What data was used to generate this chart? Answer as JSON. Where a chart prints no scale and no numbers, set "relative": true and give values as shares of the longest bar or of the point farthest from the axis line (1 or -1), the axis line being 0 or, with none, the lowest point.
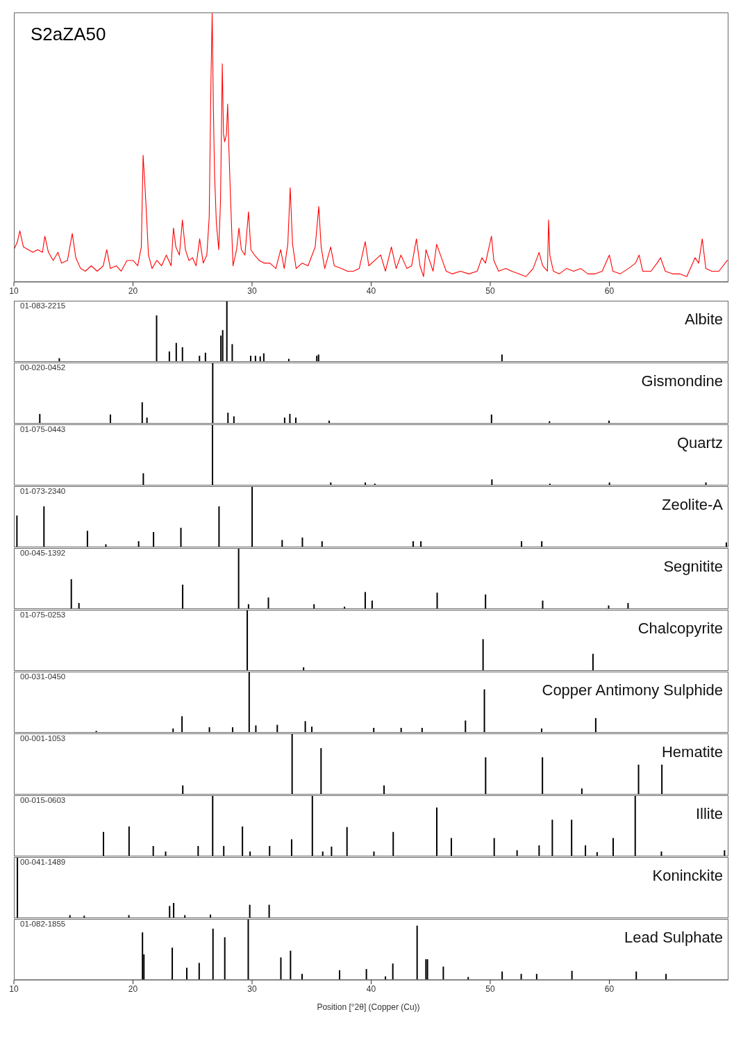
{
  "chart_data": [
    {
      "type": "line",
      "title": "S2aZA50",
      "relative": true,
      "color": "#ff0000",
      "xlim": [
        10,
        70
      ],
      "xticks": [
        10,
        20,
        30,
        40,
        50,
        60
      ],
      "tick_labels": "x",
      "x": [
        10.0,
        10.3,
        10.5,
        10.8,
        11.2,
        11.6,
        12.0,
        12.4,
        12.6,
        12.9,
        13.3,
        13.7,
        14.0,
        14.5,
        14.9,
        15.2,
        15.6,
        16.0,
        16.5,
        17.0,
        17.5,
        17.8,
        18.1,
        18.6,
        19.0,
        19.5,
        20.0,
        20.4,
        20.7,
        20.85,
        21.0,
        21.1,
        21.3,
        21.6,
        22.0,
        22.4,
        22.8,
        23.2,
        23.4,
        23.6,
        23.9,
        24.15,
        24.4,
        24.7,
        25.0,
        25.3,
        25.6,
        25.9,
        26.2,
        26.4,
        26.55,
        26.65,
        26.75,
        26.85,
        27.0,
        27.2,
        27.35,
        27.5,
        27.6,
        27.7,
        27.85,
        27.95,
        28.05,
        28.2,
        28.4,
        28.7,
        28.9,
        29.1,
        29.4,
        29.7,
        29.9,
        30.2,
        30.6,
        31.0,
        31.5,
        32.0,
        32.4,
        32.7,
        33.0,
        33.2,
        33.4,
        33.7,
        34.2,
        34.7,
        35.3,
        35.6,
        35.8,
        36.1,
        36.6,
        36.9,
        37.5,
        38.0,
        38.5,
        39.0,
        39.5,
        39.8,
        40.3,
        40.8,
        41.2,
        41.7,
        42.1,
        42.5,
        43.0,
        43.4,
        43.8,
        44.1,
        44.4,
        44.6,
        44.9,
        45.2,
        45.5,
        45.9,
        46.3,
        46.8,
        47.5,
        48.2,
        48.9,
        49.3,
        49.6,
        50.1,
        50.3,
        50.7,
        51.3,
        51.8,
        52.4,
        53.0,
        53.6,
        54.1,
        54.4,
        54.8,
        54.9,
        55.0,
        55.3,
        55.8,
        56.4,
        57.0,
        57.6,
        58.2,
        58.8,
        59.4,
        60.0,
        60.3,
        60.9,
        61.6,
        62.2,
        62.5,
        62.8,
        63.5,
        64.0,
        64.3,
        64.7,
        65.3,
        65.9,
        66.5,
        67.2,
        67.5,
        67.8,
        68.1,
        68.6,
        69.2,
        69.9
      ],
      "values": [
        0.12,
        0.15,
        0.19,
        0.13,
        0.12,
        0.11,
        0.12,
        0.11,
        0.17,
        0.11,
        0.08,
        0.11,
        0.07,
        0.08,
        0.18,
        0.09,
        0.05,
        0.04,
        0.06,
        0.04,
        0.06,
        0.12,
        0.05,
        0.06,
        0.04,
        0.08,
        0.08,
        0.06,
        0.13,
        0.47,
        0.36,
        0.28,
        0.1,
        0.05,
        0.08,
        0.06,
        0.1,
        0.06,
        0.2,
        0.13,
        0.1,
        0.23,
        0.12,
        0.08,
        0.09,
        0.06,
        0.16,
        0.07,
        0.1,
        0.24,
        0.75,
        1.0,
        0.65,
        0.4,
        0.22,
        0.12,
        0.3,
        0.81,
        0.55,
        0.52,
        0.55,
        0.66,
        0.5,
        0.3,
        0.06,
        0.12,
        0.2,
        0.12,
        0.1,
        0.26,
        0.12,
        0.1,
        0.08,
        0.07,
        0.07,
        0.05,
        0.12,
        0.05,
        0.14,
        0.35,
        0.14,
        0.05,
        0.07,
        0.06,
        0.13,
        0.28,
        0.13,
        0.05,
        0.13,
        0.06,
        0.05,
        0.04,
        0.04,
        0.05,
        0.15,
        0.06,
        0.08,
        0.1,
        0.04,
        0.13,
        0.05,
        0.1,
        0.05,
        0.06,
        0.16,
        0.06,
        0.02,
        0.12,
        0.08,
        0.04,
        0.14,
        0.09,
        0.04,
        0.03,
        0.04,
        0.03,
        0.04,
        0.09,
        0.07,
        0.17,
        0.08,
        0.04,
        0.05,
        0.04,
        0.03,
        0.02,
        0.05,
        0.11,
        0.06,
        0.04,
        0.23,
        0.1,
        0.04,
        0.03,
        0.05,
        0.04,
        0.05,
        0.03,
        0.03,
        0.04,
        0.1,
        0.04,
        0.03,
        0.05,
        0.07,
        0.1,
        0.04,
        0.04,
        0.07,
        0.09,
        0.04,
        0.03,
        0.03,
        0.02,
        0.09,
        0.07,
        0.16,
        0.05,
        0.04,
        0.04,
        0.08
      ]
    },
    {
      "type": "bar",
      "title": "Albite",
      "subtitle": "01-083-2215",
      "relative": true,
      "color": "#000000",
      "xlim": [
        10,
        70
      ],
      "tick_labels": false,
      "x": [
        13.83,
        22.0,
        23.07,
        23.65,
        24.17,
        25.6,
        26.1,
        27.4,
        27.55,
        27.9,
        28.35,
        29.9,
        30.3,
        30.7,
        31.0,
        33.1,
        35.45,
        35.6,
        51.0
      ],
      "values": [
        0.06,
        0.76,
        0.17,
        0.31,
        0.24,
        0.1,
        0.15,
        0.43,
        0.52,
        1,
        0.29,
        0.1,
        0.1,
        0.09,
        0.14,
        0.05,
        0.1,
        0.12,
        0.12
      ]
    },
    {
      "type": "bar",
      "title": "Gismondine",
      "subtitle": "00-020-0452",
      "relative": true,
      "color": "#000000",
      "xlim": [
        10,
        70
      ],
      "tick_labels": false,
      "x": [
        12.2,
        18.13,
        20.8,
        21.2,
        26.72,
        28.0,
        28.5,
        32.76,
        33.2,
        33.7,
        36.5,
        50.13,
        55.0,
        60.0
      ],
      "values": [
        0.16,
        0.15,
        0.35,
        0.1,
        1,
        0.18,
        0.12,
        0.1,
        0.16,
        0.1,
        0.05,
        0.15,
        0.04,
        0.05
      ]
    },
    {
      "type": "bar",
      "title": "Quartz",
      "subtitle": "01-075-0443",
      "relative": true,
      "color": "#000000",
      "xlim": [
        10,
        70
      ],
      "tick_labels": false,
      "x": [
        20.86,
        26.67,
        36.6,
        39.5,
        40.3,
        50.13,
        55.0,
        60.0,
        68.1
      ],
      "values": [
        0.2,
        1,
        0.05,
        0.05,
        0.03,
        0.1,
        0.03,
        0.05,
        0.05
      ]
    },
    {
      "type": "bar",
      "title": "Zeolite-A",
      "subtitle": "01-073-2340",
      "relative": true,
      "color": "#000000",
      "xlim": [
        10,
        70
      ],
      "tick_labels": false,
      "x": [
        10.23,
        12.5,
        16.15,
        17.7,
        20.45,
        21.7,
        24.0,
        27.2,
        29.98,
        32.5,
        34.2,
        35.85,
        43.5,
        44.15,
        52.6,
        54.3,
        69.8
      ],
      "values": [
        0.52,
        0.67,
        0.27,
        0.05,
        0.1,
        0.25,
        0.32,
        0.67,
        1,
        0.12,
        0.16,
        0.1,
        0.1,
        0.1,
        0.1,
        0.1,
        0.08
      ]
    },
    {
      "type": "bar",
      "title": "Segnitite",
      "subtitle": "00-045-1392",
      "relative": true,
      "color": "#000000",
      "xlim": [
        10,
        70
      ],
      "tick_labels": false,
      "x": [
        14.82,
        15.46,
        24.17,
        28.87,
        29.7,
        31.37,
        35.2,
        37.76,
        39.5,
        40.08,
        45.54,
        49.6,
        54.4,
        59.94,
        61.57
      ],
      "values": [
        0.49,
        0.1,
        0.4,
        1,
        0.08,
        0.19,
        0.08,
        0.04,
        0.28,
        0.14,
        0.27,
        0.24,
        0.14,
        0.06,
        0.1
      ]
    },
    {
      "type": "bar",
      "title": "Chalcopyrite",
      "subtitle": "01-075-0253",
      "relative": true,
      "color": "#000000",
      "xlim": [
        10,
        70
      ],
      "tick_labels": false,
      "x": [
        29.57,
        34.3,
        49.37,
        58.6
      ],
      "values": [
        1,
        0.06,
        0.52,
        0.28
      ]
    },
    {
      "type": "bar",
      "title": "Copper Antimony Sulphide",
      "subtitle": "00-031-0450",
      "relative": true,
      "color": "#000000",
      "xlim": [
        10,
        70
      ],
      "tick_labels": false,
      "x": [
        16.9,
        23.35,
        24.1,
        26.4,
        28.35,
        29.74,
        30.3,
        32.1,
        34.45,
        35.0,
        40.2,
        42.5,
        44.26,
        47.9,
        49.49,
        54.3,
        58.84
      ],
      "values": [
        0.03,
        0.07,
        0.27,
        0.09,
        0.09,
        1,
        0.12,
        0.13,
        0.19,
        0.1,
        0.08,
        0.08,
        0.08,
        0.2,
        0.71,
        0.07,
        0.24
      ]
    },
    {
      "type": "bar",
      "title": "Hematite",
      "subtitle": "00-001-1053",
      "relative": true,
      "color": "#000000",
      "xlim": [
        10,
        70
      ],
      "tick_labels": false,
      "x": [
        24.17,
        33.35,
        35.78,
        41.07,
        49.6,
        54.37,
        57.68,
        62.44,
        64.4
      ],
      "values": [
        0.15,
        1,
        0.76,
        0.15,
        0.61,
        0.61,
        0.1,
        0.49,
        0.49
      ]
    },
    {
      "type": "bar",
      "title": "Illite",
      "subtitle": "00-015-0603",
      "relative": true,
      "color": "#000000",
      "xlim": [
        10,
        70
      ],
      "tick_labels": false,
      "x": [
        17.55,
        19.7,
        21.73,
        22.77,
        25.5,
        26.72,
        27.65,
        29.22,
        29.86,
        31.5,
        33.35,
        35.09,
        35.96,
        36.7,
        38.0,
        40.26,
        41.88,
        45.54,
        46.76,
        50.36,
        52.28,
        54.13,
        55.24,
        56.86,
        58.02,
        59.0,
        60.35,
        62.2,
        64.4,
        69.7
      ],
      "values": [
        0.4,
        0.49,
        0.17,
        0.08,
        0.17,
        1,
        0.17,
        0.49,
        0.08,
        0.17,
        0.28,
        1,
        0.08,
        0.16,
        0.48,
        0.08,
        0.4,
        0.8,
        0.3,
        0.3,
        0.1,
        0.18,
        0.6,
        0.6,
        0.18,
        0.07,
        0.3,
        1,
        0.08,
        0.1
      ]
    },
    {
      "type": "bar",
      "title": "Koninckite",
      "subtitle": "00-041-1489",
      "relative": true,
      "color": "#000000",
      "xlim": [
        10,
        70
      ],
      "tick_labels": false,
      "x": [
        10.29,
        14.7,
        15.9,
        19.65,
        23.07,
        23.41,
        24.35,
        26.5,
        29.8,
        31.43
      ],
      "values": [
        1,
        0.05,
        0.04,
        0.05,
        0.2,
        0.25,
        0.05,
        0.06,
        0.22,
        0.22
      ]
    },
    {
      "type": "bar",
      "title": "Lead Sulphate",
      "subtitle": "01-082-1855",
      "relative": true,
      "color": "#000000",
      "xlim": [
        10,
        70
      ],
      "xticks": [
        10,
        20,
        30,
        40,
        50,
        60
      ],
      "tick_labels": "x",
      "xlabel": "Position [°2θ] (Copper (Cu))",
      "x": [
        20.8,
        20.92,
        23.3,
        24.52,
        25.56,
        26.72,
        27.71,
        29.68,
        32.42,
        33.23,
        34.2,
        37.35,
        39.6,
        41.2,
        41.82,
        43.86,
        44.6,
        44.73,
        46.06,
        48.15,
        51.0,
        52.6,
        53.9,
        56.86,
        62.26,
        64.76
      ],
      "values": [
        0.78,
        0.42,
        0.53,
        0.2,
        0.28,
        0.84,
        0.7,
        1,
        0.37,
        0.48,
        0.1,
        0.16,
        0.18,
        0.06,
        0.27,
        0.89,
        0.34,
        0.34,
        0.22,
        0.05,
        0.14,
        0.1,
        0.1,
        0.15,
        0.14,
        0.1
      ]
    }
  ]
}
